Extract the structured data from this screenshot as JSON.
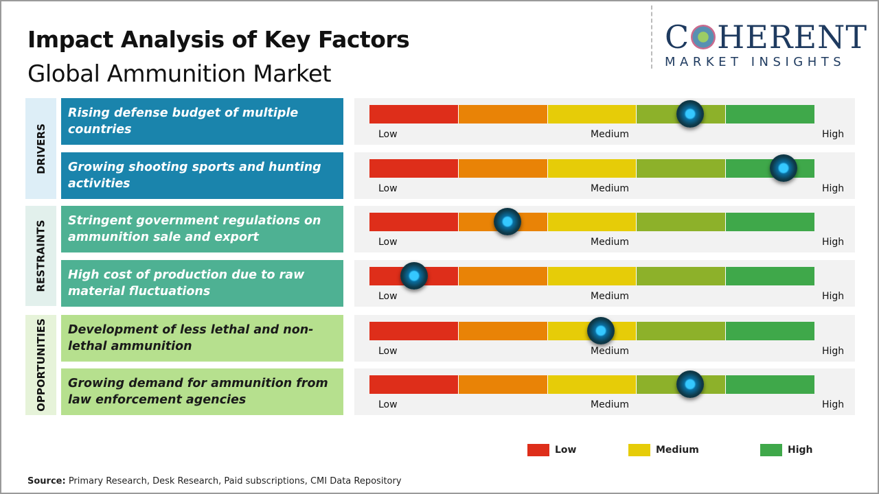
{
  "title": "Impact Analysis of Key Factors",
  "subtitle": "Global Ammunition Market",
  "logo": {
    "main": "COHERENT",
    "sub": "MARKET INSIGHTS"
  },
  "scale": {
    "low": "Low",
    "medium": "Medium",
    "high": "High",
    "segment_colors": [
      "#de2e1a",
      "#e98306",
      "#e6cc08",
      "#8db12a",
      "#3fa84a"
    ]
  },
  "categories": [
    {
      "label": "DRIVERS",
      "bg": "#ddeef7",
      "box": "#1a84ac",
      "text": "#ffffff"
    },
    {
      "label": "RESTRAINTS",
      "bg": "#e2f0ec",
      "box": "#4eb193",
      "text": "#ffffff"
    },
    {
      "label": "OPPORTUNITIES",
      "bg": "#e6f3d9",
      "box": "#b6e08e",
      "text": "#1a1a1a"
    }
  ],
  "factors": [
    {
      "text": "Rising defense budget of multiple countries",
      "category": 0,
      "impact": 0.72
    },
    {
      "text": "Growing shooting sports and hunting activities",
      "category": 0,
      "impact": 0.93
    },
    {
      "text": "Stringent government regulations on ammunition sale and export",
      "category": 1,
      "impact": 0.31
    },
    {
      "text": "High cost of production due to raw material fluctuations",
      "category": 1,
      "impact": 0.1
    },
    {
      "text": "Development of less lethal and non-lethal ammunition",
      "category": 2,
      "impact": 0.52
    },
    {
      "text": "Growing demand for ammunition from law enforcement agencies",
      "category": 2,
      "impact": 0.72
    }
  ],
  "legend": [
    {
      "label": "Low",
      "color": "#de2e1a"
    },
    {
      "label": "Medium",
      "color": "#e6cc08"
    },
    {
      "label": "High",
      "color": "#3fa84a"
    }
  ],
  "source": {
    "label": "Source:",
    "text": " Primary Research, Desk Research, Paid subscriptions, CMI Data Repository"
  }
}
